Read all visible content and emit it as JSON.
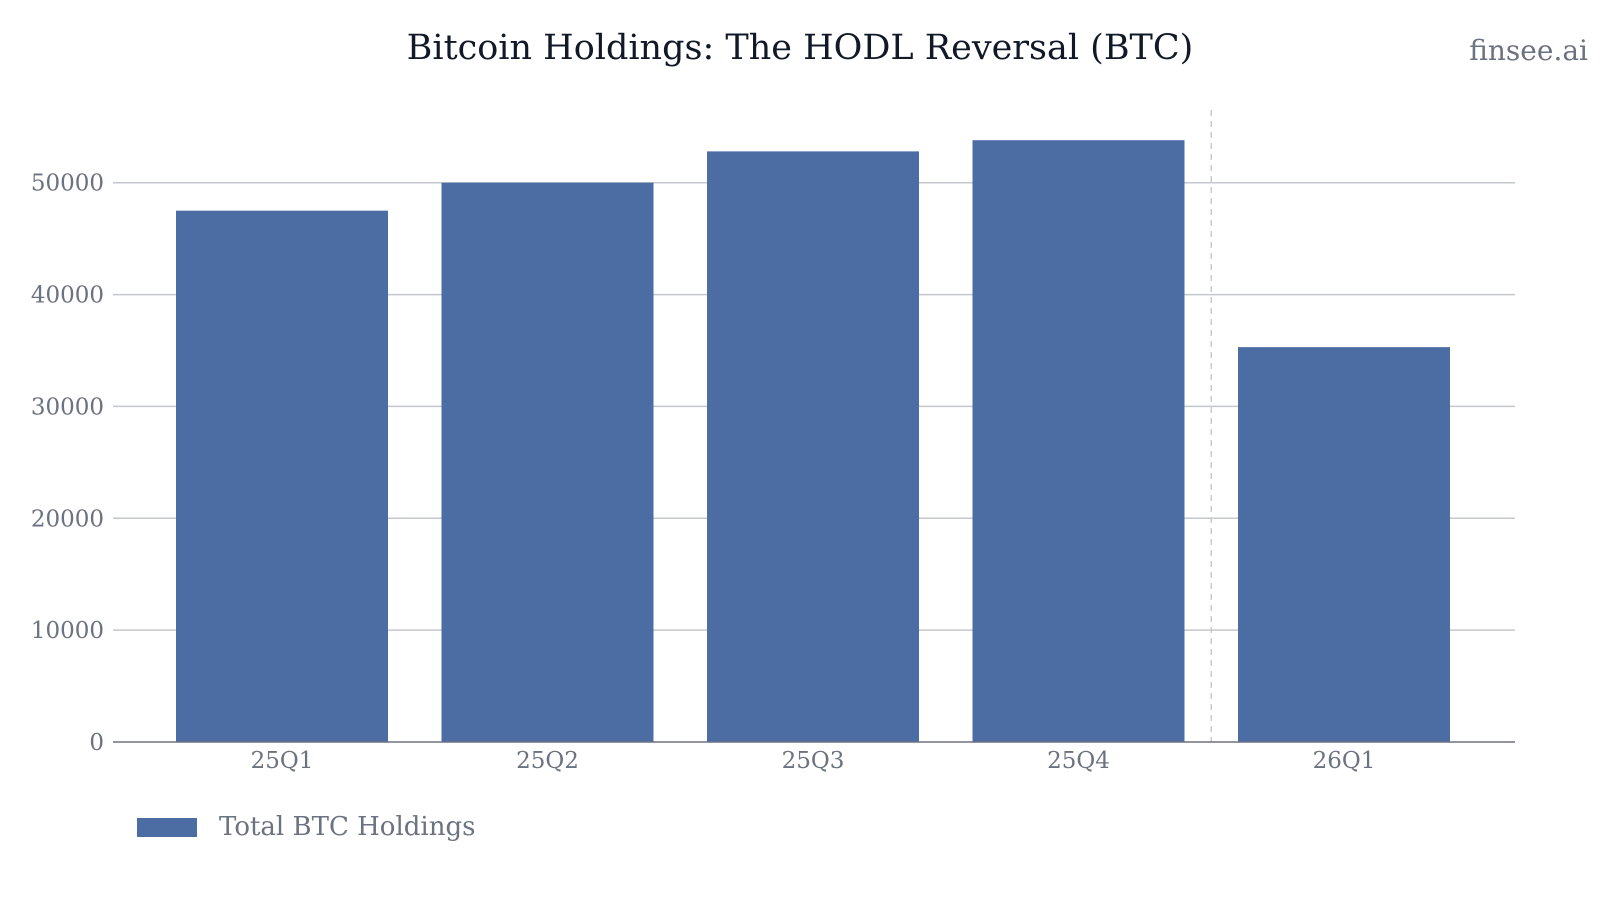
{
  "watermark": "finsee.ai",
  "chart_data": {
    "type": "bar",
    "title": "Bitcoin Holdings: The HODL Reversal (BTC)",
    "xlabel": "",
    "ylabel": "",
    "categories": [
      "25Q1",
      "25Q2",
      "25Q3",
      "25Q4",
      "26Q1"
    ],
    "series": [
      {
        "name": "Total BTC Holdings",
        "values": [
          47500,
          50000,
          52800,
          53800,
          35300
        ],
        "color": "#4b6da4"
      }
    ],
    "ylim": [
      0,
      56500
    ],
    "yticks": [
      0,
      10000,
      20000,
      30000,
      40000,
      50000
    ],
    "grid": true,
    "divider_after_category": "25Q4",
    "legend_position": "bottom-left"
  }
}
